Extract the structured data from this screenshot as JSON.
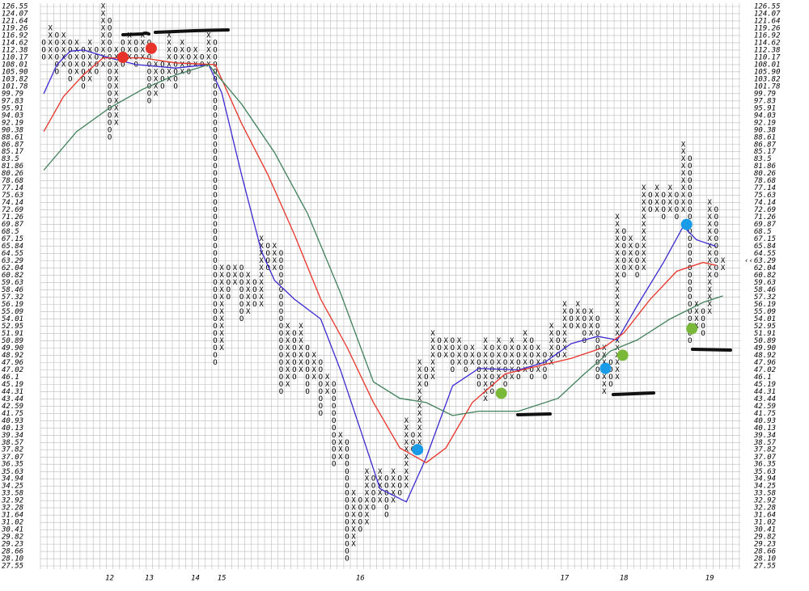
{
  "chart_data": {
    "type": "point-and-figure",
    "symbols": [
      "O",
      "X"
    ],
    "ylim": [
      27.55,
      126.55
    ],
    "log_scale": true,
    "grid": true,
    "yticks": [
      126.55,
      124.07,
      121.64,
      119.26,
      116.92,
      114.62,
      112.38,
      110.17,
      108.01,
      {
        "value": 105.9,
        "label": "105.90"
      },
      103.82,
      101.78,
      99.79,
      97.83,
      95.91,
      94.03,
      92.19,
      90.38,
      88.61,
      86.87,
      85.17,
      83.5,
      81.86,
      80.26,
      78.68,
      77.14,
      75.63,
      74.14,
      72.69,
      71.26,
      69.87,
      68.5,
      67.15,
      65.84,
      64.55,
      63.29,
      62.04,
      60.82,
      59.63,
      58.46,
      57.32,
      56.19,
      55.09,
      54.01,
      52.95,
      51.91,
      50.89,
      {
        "value": 49.9,
        "label": "49.90"
      },
      48.92,
      47.96,
      47.02,
      46.1,
      45.19,
      44.31,
      43.44,
      42.59,
      41.75,
      40.93,
      40.13,
      39.34,
      38.57,
      37.82,
      37.07,
      36.35,
      35.63,
      34.94,
      34.25,
      33.58,
      32.92,
      32.28,
      31.64,
      31.02,
      30.41,
      29.82,
      29.23,
      28.66,
      {
        "value": 28.1,
        "label": "28.10"
      },
      27.55
    ],
    "current_price": 63.29,
    "current_marker": "‹‹",
    "current_color": "#e0205a",
    "xticks": [
      {
        "value": 10,
        "label": "12"
      },
      {
        "value": 16,
        "label": "13"
      },
      {
        "value": 23,
        "label": "14"
      },
      {
        "value": 27,
        "label": "15"
      },
      {
        "value": 48,
        "label": "16"
      },
      {
        "value": 79,
        "label": "17"
      },
      {
        "value": 88,
        "label": "18"
      },
      {
        "value": 101,
        "label": "19"
      }
    ],
    "x_color": "#000000",
    "o_color": "#d0302a",
    "columns": [
      [
        110.17,
        114.62
      ],
      [
        110.17,
        119.26
      ],
      [
        105.9,
        116.92
      ],
      [
        108.01,
        116.92
      ],
      [
        103.82,
        114.62
      ],
      [
        105.9,
        114.62
      ],
      [
        101.78,
        112.38
      ],
      [
        103.82,
        114.62
      ],
      [
        105.9,
        112.38
      ],
      [
        108.01,
        126.55
      ],
      [
        88.61,
        121.64
      ],
      [
        92.19,
        112.38
      ],
      [
        108.01,
        114.62
      ],
      [
        110.17,
        116.92
      ],
      [
        108.01,
        114.62
      ],
      [
        110.17,
        116.92
      ],
      [
        97.83,
        114.62
      ],
      [
        99.79,
        108.01
      ],
      [
        101.78,
        108.01
      ],
      [
        103.82,
        116.92
      ],
      [
        101.78,
        112.38
      ],
      [
        105.9,
        114.62
      ],
      [
        105.9,
        112.38
      ],
      [
        108.01,
        112.38
      ],
      [
        108.01,
        110.17
      ],
      [
        108.01,
        116.92
      ],
      [
        47.96,
        114.62
      ],
      [
        49.9,
        62.04
      ],
      [
        57.32,
        62.04
      ],
      [
        59.63,
        62.04
      ],
      [
        54.01,
        62.04
      ],
      [
        55.09,
        60.82
      ],
      [
        56.19,
        59.63
      ],
      [
        56.19,
        67.15
      ],
      [
        62.04,
        65.84
      ],
      [
        62.04,
        65.84
      ],
      [
        44.31,
        64.55
      ],
      [
        45.19,
        52.95
      ],
      [
        46.1,
        51.91
      ],
      [
        47.02,
        52.95
      ],
      [
        44.31,
        49.9
      ],
      [
        46.1,
        48.92
      ],
      [
        41.75,
        47.96
      ],
      [
        44.31,
        46.1
      ],
      [
        36.35,
        45.19
      ],
      [
        37.07,
        39.34
      ],
      [
        28.1,
        38.57
      ],
      [
        29.23,
        33.58
      ],
      [
        30.41,
        32.92
      ],
      [
        31.02,
        35.63
      ],
      [
        32.28,
        34.94
      ],
      [
        32.92,
        35.63
      ],
      [
        31.64,
        34.94
      ],
      [
        32.92,
        35.63
      ],
      [
        33.58,
        34.94
      ],
      [
        34.25,
        40.93
      ],
      [
        37.82,
        39.34
      ],
      [
        38.57,
        47.96
      ],
      [
        45.19,
        47.02
      ],
      [
        46.1,
        51.91
      ],
      [
        48.92,
        50.89
      ],
      [
        48.92,
        50.89
      ],
      [
        47.02,
        50.89
      ],
      [
        47.96,
        50.89
      ],
      [
        47.02,
        49.9
      ],
      [
        47.96,
        49.9
      ],
      [
        45.19,
        48.92
      ],
      [
        43.44,
        50.89
      ],
      [
        44.31,
        49.9
      ],
      [
        46.1,
        50.89
      ],
      [
        45.19,
        49.9
      ],
      [
        46.1,
        50.89
      ],
      [
        46.1,
        49.9
      ],
      [
        47.02,
        51.91
      ],
      [
        46.1,
        50.89
      ],
      [
        47.02,
        49.9
      ],
      [
        46.1,
        48.92
      ],
      [
        47.96,
        52.95
      ],
      [
        48.92,
        51.91
      ],
      [
        48.92,
        56.19
      ],
      [
        52.95,
        55.09
      ],
      [
        52.95,
        56.19
      ],
      [
        50.89,
        55.09
      ],
      [
        51.91,
        55.09
      ],
      [
        46.1,
        54.01
      ],
      [
        44.31,
        49.9
      ],
      [
        45.19,
        47.96
      ],
      [
        46.1,
        71.26
      ],
      [
        60.82,
        68.5
      ],
      [
        62.04,
        67.15
      ],
      [
        60.82,
        65.84
      ],
      [
        62.04,
        77.14
      ],
      [
        72.69,
        75.63
      ],
      [
        72.69,
        77.14
      ],
      [
        71.26,
        75.63
      ],
      [
        72.69,
        77.14
      ],
      [
        71.26,
        75.63
      ],
      [
        72.69,
        86.87
      ],
      [
        50.89,
        83.5
      ],
      [
        52.95,
        56.19
      ],
      [
        51.91,
        55.09
      ],
      [
        55.09,
        74.14
      ],
      [
        60.82,
        72.69
      ],
      [
        62.04,
        63.29
      ]
    ],
    "series": [
      {
        "color": "#3a2ad0",
        "x": [
          0,
          2,
          4,
          6,
          10,
          14,
          20,
          25,
          27,
          30,
          33,
          35,
          38,
          42,
          45,
          48,
          51,
          55,
          58,
          62,
          66,
          72,
          76,
          80,
          84,
          87,
          90,
          94,
          97,
          99,
          102
        ],
        "values": [
          99.79,
          108,
          112,
          112.4,
          110,
          108,
          107,
          108,
          100,
          80,
          65,
          60,
          57,
          54,
          47,
          40,
          34,
          32.8,
          37,
          45,
          47.2,
          47,
          48,
          50.5,
          51.5,
          51,
          56,
          63,
          69.5,
          67,
          65.8
        ]
      },
      {
        "color": "#e8332a",
        "x": [
          0,
          3,
          6,
          9,
          15,
          20,
          26,
          30,
          34,
          38,
          42,
          46,
          50,
          54,
          58,
          61,
          65,
          70,
          75,
          80,
          85,
          88,
          92,
          96,
          100,
          102
        ],
        "values": [
          90,
          99,
          105,
          110,
          110,
          108.5,
          108,
          92,
          80,
          68,
          57,
          50,
          43,
          38,
          36.5,
          38,
          43,
          46.5,
          47.5,
          48.5,
          50,
          52,
          57,
          61.5,
          63,
          62.5
        ]
      },
      {
        "color": "#3f7f5a",
        "x": [
          0,
          5,
          10,
          15,
          20,
          25,
          30,
          35,
          40,
          45,
          50,
          54,
          58,
          62,
          66,
          72,
          78,
          82,
          86,
          90,
          95,
          100,
          103
        ],
        "values": [
          81,
          90,
          96,
          101,
          105,
          108,
          97,
          85,
          72,
          58,
          45.5,
          43.5,
          43,
          41.5,
          42,
          42,
          43.5,
          46.5,
          49.5,
          51,
          54,
          56.5,
          57.5
        ]
      }
    ],
    "dots": [
      {
        "color": "#e8332a",
        "x": 12,
        "y": 110.17
      },
      {
        "color": "#e8332a",
        "x": 16.3,
        "y": 112.9
      },
      {
        "color": "#1a9be8",
        "x": 56.7,
        "y": 37.82
      },
      {
        "color": "#1a9be8",
        "x": 85.2,
        "y": 47.2
      },
      {
        "color": "#1a9be8",
        "x": 97.5,
        "y": 69.87
      },
      {
        "color": "#7ab83a",
        "x": 69.4,
        "y": 44.1
      },
      {
        "color": "#7ab83a",
        "x": 87.8,
        "y": 48.92
      },
      {
        "color": "#7ab83a",
        "x": 98.3,
        "y": 52.6
      }
    ]
  }
}
